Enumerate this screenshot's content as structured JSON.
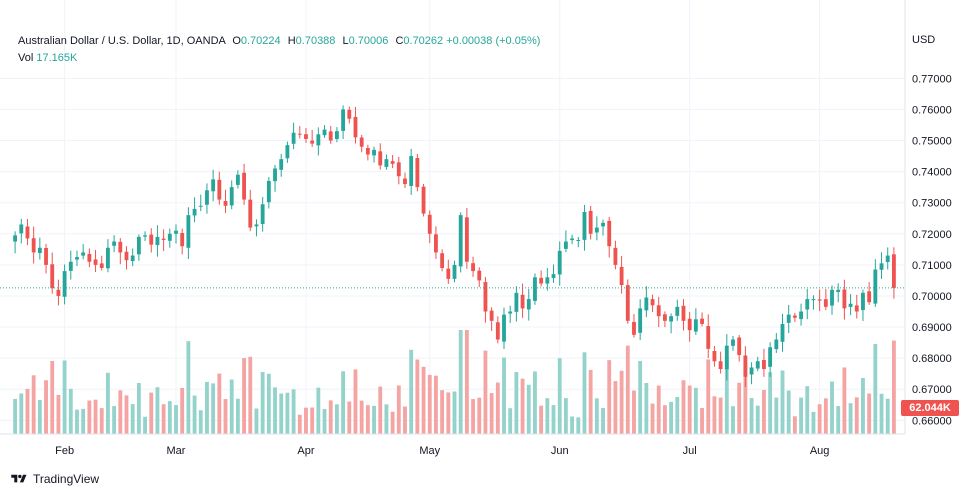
{
  "legend": {
    "symbol": "Australian Dollar / U.S. Dollar, 1D, OANDA",
    "open_label": "O",
    "open": "0.70224",
    "high_label": "H",
    "high": "0.70388",
    "low_label": "L",
    "low": "0.70006",
    "close_label": "C",
    "close": "0.70262",
    "change": "+0.00038 (+0.05%)",
    "vol_label": "Vol",
    "vol": "17.165K"
  },
  "currency": "USD",
  "volume_badge": "62.044K",
  "brand": "TradingView",
  "colors": {
    "up": "#26a69a",
    "down": "#ef5350",
    "up_vol": "#94d3cb",
    "down_vol": "#f4a4a2",
    "grid": "#f0f3fa"
  },
  "chart_data": {
    "type": "candlestick",
    "yaxis": {
      "ticks": [
        "0.77000",
        "0.76000",
        "0.75000",
        "0.74000",
        "0.73000",
        "0.72000",
        "0.71000",
        "0.70000",
        "0.69000",
        "0.68000",
        "0.67000",
        "0.66000"
      ],
      "range": [
        0.6585,
        0.7775
      ]
    },
    "xaxis": {
      "ticks": [
        "Feb",
        "Mar",
        "Apr",
        "May",
        "Jun",
        "Jul",
        "Aug"
      ]
    },
    "last_close_line": 0.7026,
    "closes": [
      0.7195,
      0.723,
      0.7185,
      0.714,
      0.7155,
      0.71,
      0.7025,
      0.7,
      0.708,
      0.711,
      0.7125,
      0.714,
      0.711,
      0.71,
      0.709,
      0.7155,
      0.7175,
      0.714,
      0.7115,
      0.713,
      0.719,
      0.7195,
      0.7165,
      0.719,
      0.718,
      0.72,
      0.721,
      0.716,
      0.726,
      0.728,
      0.729,
      0.734,
      0.7375,
      0.731,
      0.729,
      0.735,
      0.739,
      0.731,
      0.722,
      0.723,
      0.7295,
      0.737,
      0.741,
      0.744,
      0.7485,
      0.7525,
      0.752,
      0.7505,
      0.749,
      0.752,
      0.7535,
      0.75,
      0.753,
      0.76,
      0.757,
      0.751,
      0.748,
      0.7455,
      0.747,
      0.742,
      0.744,
      0.7425,
      0.7385,
      0.736,
      0.745,
      0.735,
      0.7265,
      0.72,
      0.714,
      0.709,
      0.7055,
      0.71,
      0.726,
      0.711,
      0.708,
      0.705,
      0.695,
      0.692,
      0.686,
      0.694,
      0.695,
      0.701,
      0.696,
      0.699,
      0.706,
      0.704,
      0.706,
      0.707,
      0.7145,
      0.7175,
      0.7185,
      0.718,
      0.727,
      0.72,
      0.722,
      0.7235,
      0.716,
      0.71,
      0.7035,
      0.692,
      0.6875,
      0.696,
      0.6995,
      0.697,
      0.6935,
      0.692,
      0.6935,
      0.6965,
      0.692,
      0.689,
      0.6925,
      0.691,
      0.683,
      0.679,
      0.6765,
      0.684,
      0.686,
      0.681,
      0.674,
      0.677,
      0.679,
      0.6765,
      0.6835,
      0.686,
      0.691,
      0.694,
      0.693,
      0.695,
      0.699,
      0.699,
      0.6985,
      0.6965,
      0.702,
      0.702,
      0.696,
      0.6975,
      0.695,
      0.701,
      0.698,
      0.7085,
      0.7105,
      0.713,
      0.7026
    ]
  }
}
